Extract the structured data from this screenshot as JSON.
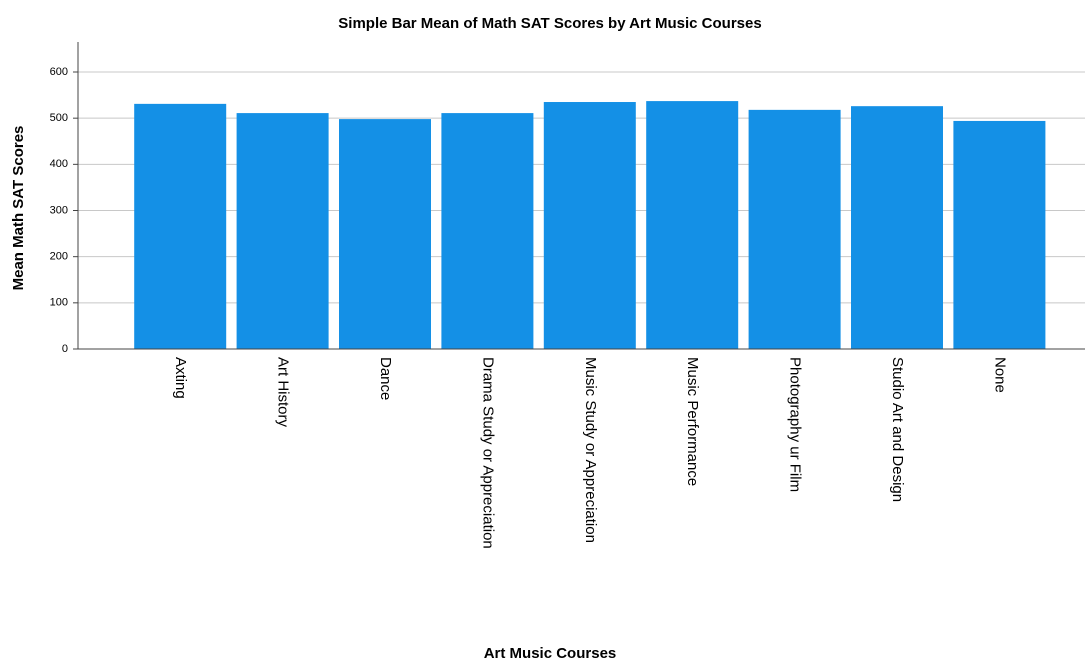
{
  "chart_data": {
    "type": "bar",
    "title": "Simple Bar Mean of Math SAT Scores by Art Music Courses",
    "x_label": "Art Music Courses",
    "y_label": "Mean Math SAT Scores",
    "categories": [
      "Axting",
      "Art History",
      "Dance",
      "Drama Study or Appreciation",
      "Music Study or Appreciation",
      "Music Performance",
      "Photography ur Film",
      "Studio Art and Design",
      "None"
    ],
    "values": [
      531,
      511,
      498,
      511,
      535,
      537,
      518,
      526,
      494
    ],
    "color": "#1490e6",
    "ylim": [
      0,
      665
    ],
    "yticks": [
      0,
      100,
      200,
      300,
      400,
      500,
      600
    ],
    "grid": true
  }
}
